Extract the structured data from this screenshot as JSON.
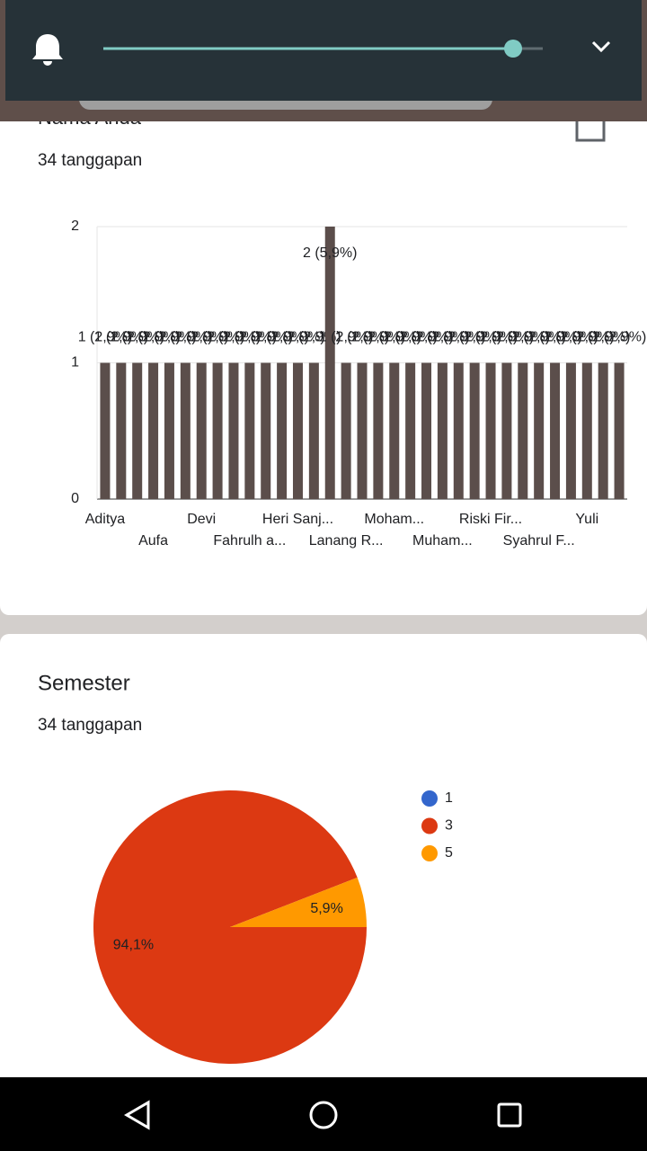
{
  "chart_data": [
    {
      "type": "bar",
      "title": "Nama Anda",
      "subtitle": "34 tanggapan",
      "categories": [
        "Aditya",
        null,
        null,
        "Aufa",
        null,
        null,
        "Devi",
        null,
        null,
        "Fahrulh a...",
        null,
        null,
        "Heri Sanj...",
        null,
        null,
        "Lanang R...",
        null,
        null,
        "Moham...",
        null,
        null,
        "Muham...",
        null,
        null,
        "Riski Fir...",
        null,
        null,
        "Syahrul F...",
        null,
        null,
        "Yuli",
        null,
        null
      ],
      "values": [
        1,
        1,
        1,
        1,
        1,
        1,
        1,
        1,
        1,
        1,
        1,
        1,
        1,
        1,
        2,
        1,
        1,
        1,
        1,
        1,
        1,
        1,
        1,
        1,
        1,
        1,
        1,
        1,
        1,
        1,
        1,
        1,
        1
      ],
      "value_labels": [
        "1 (2,9%)",
        "1 (2,9%)",
        "1 (2,9%)",
        "1 (2,9%)",
        "1 (2,9%)",
        "1 (2,9%)",
        "1 (2,9%)",
        "1 (2,9%)",
        "1 (2,9%)",
        "1 (2,9%)",
        "1 (2,9%)",
        "1 (2,9%)",
        "1 (2,9%)",
        "1 (2,9%)",
        "2 (5,9%)",
        "1 (2,9%)",
        "1 (2,9%)",
        "1 (2,9%)",
        "1 (2,9%)",
        "1 (2,9%)",
        "1 (2,9%)",
        "1 (2,9%)",
        "1 (2,9%)",
        "1 (2,9%)",
        "1 (2,9%)",
        "1 (2,9%)",
        "1 (2,9%)",
        "1 (2,9%)",
        "1 (2,9%)",
        "1 (2,9%)",
        "1 (2,9%)",
        "1 (2,9%)",
        "1 (2,9%)"
      ],
      "color": "#5b4e4b",
      "ylim": [
        0,
        2
      ],
      "yticks": [
        0,
        1,
        2
      ],
      "grid": true
    },
    {
      "type": "pie",
      "title": "Semester",
      "subtitle": "34 tanggapan",
      "categories": [
        "1",
        "3",
        "5"
      ],
      "values": [
        0,
        94.1,
        5.9
      ],
      "value_labels": [
        null,
        "94,1%",
        "5,9%"
      ],
      "colors": [
        "#3366cc",
        "#dc3912",
        "#ff9900"
      ],
      "legend": "right"
    }
  ]
}
